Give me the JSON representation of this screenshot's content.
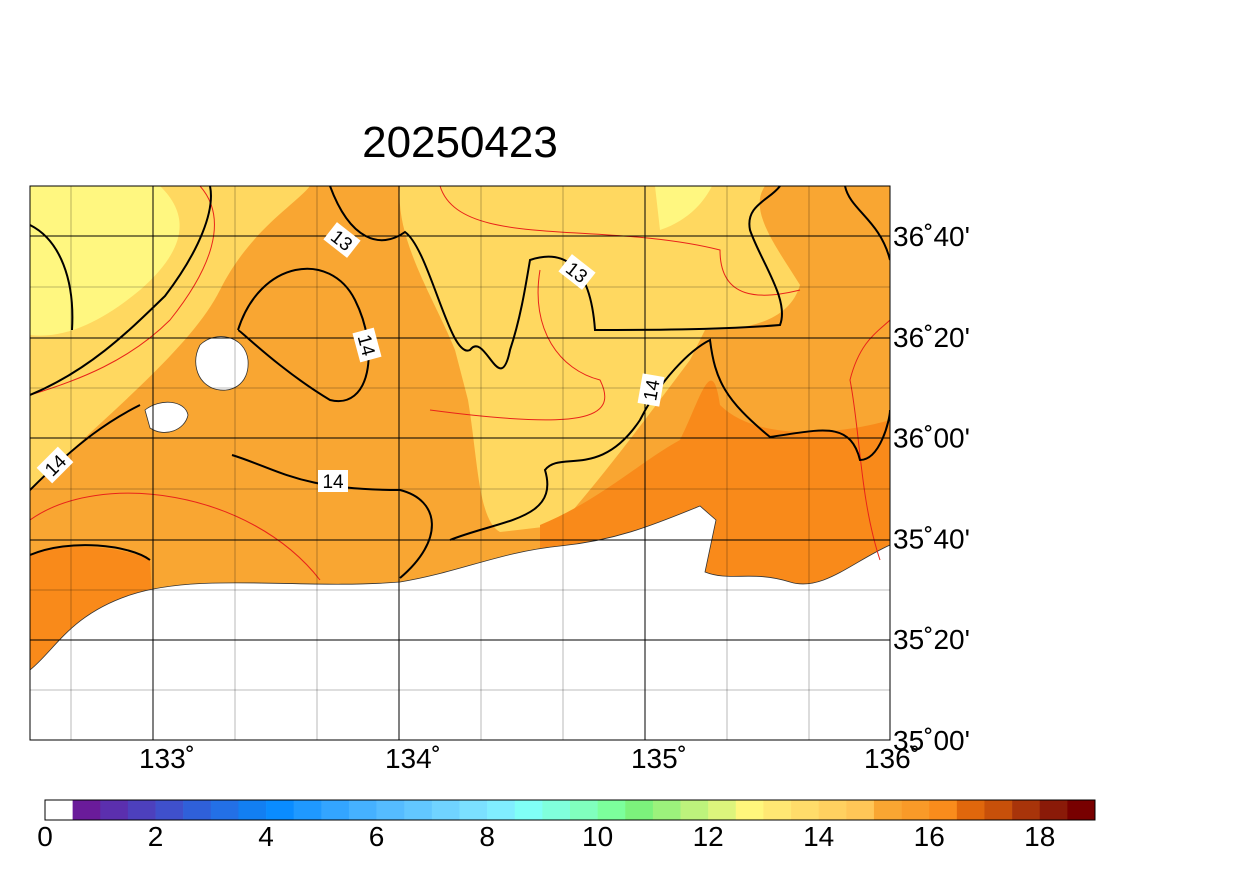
{
  "title": "20250423",
  "lon_labels": [
    "133˚",
    "134˚",
    "135˚",
    "136˚"
  ],
  "lat_labels": [
    "36˚40'",
    "36˚20'",
    "36˚00'",
    "35˚40'",
    "35˚20'",
    "35˚00'"
  ],
  "contour_labels": [
    "13",
    "13",
    "14",
    "14",
    "14",
    "14"
  ],
  "colorbar": {
    "ticks": [
      0,
      2,
      4,
      6,
      8,
      10,
      12,
      14,
      16,
      18
    ],
    "colors": [
      "#ffffff",
      "#6a1b9a",
      "#5b2fae",
      "#4d40bd",
      "#3f50cc",
      "#2f60da",
      "#2370e6",
      "#127ff2",
      "#0a8cff",
      "#1f99ff",
      "#33a5ff",
      "#45b1ff",
      "#55bcff",
      "#62c7ff",
      "#70d3ff",
      "#7be0ff",
      "#80eeff",
      "#80fff7",
      "#80ffdc",
      "#80ffbe",
      "#7cff9c",
      "#7cf27c",
      "#9cf27c",
      "#bdf37c",
      "#ddf57c",
      "#fff77c",
      "#ffe873",
      "#ffdc6a",
      "#ffd160",
      "#ffc657",
      "#f9a632",
      "#f99a28",
      "#f98c1c",
      "#e0670c",
      "#c8500a",
      "#a8340a",
      "#8a1a08",
      "#780000"
    ]
  }
}
